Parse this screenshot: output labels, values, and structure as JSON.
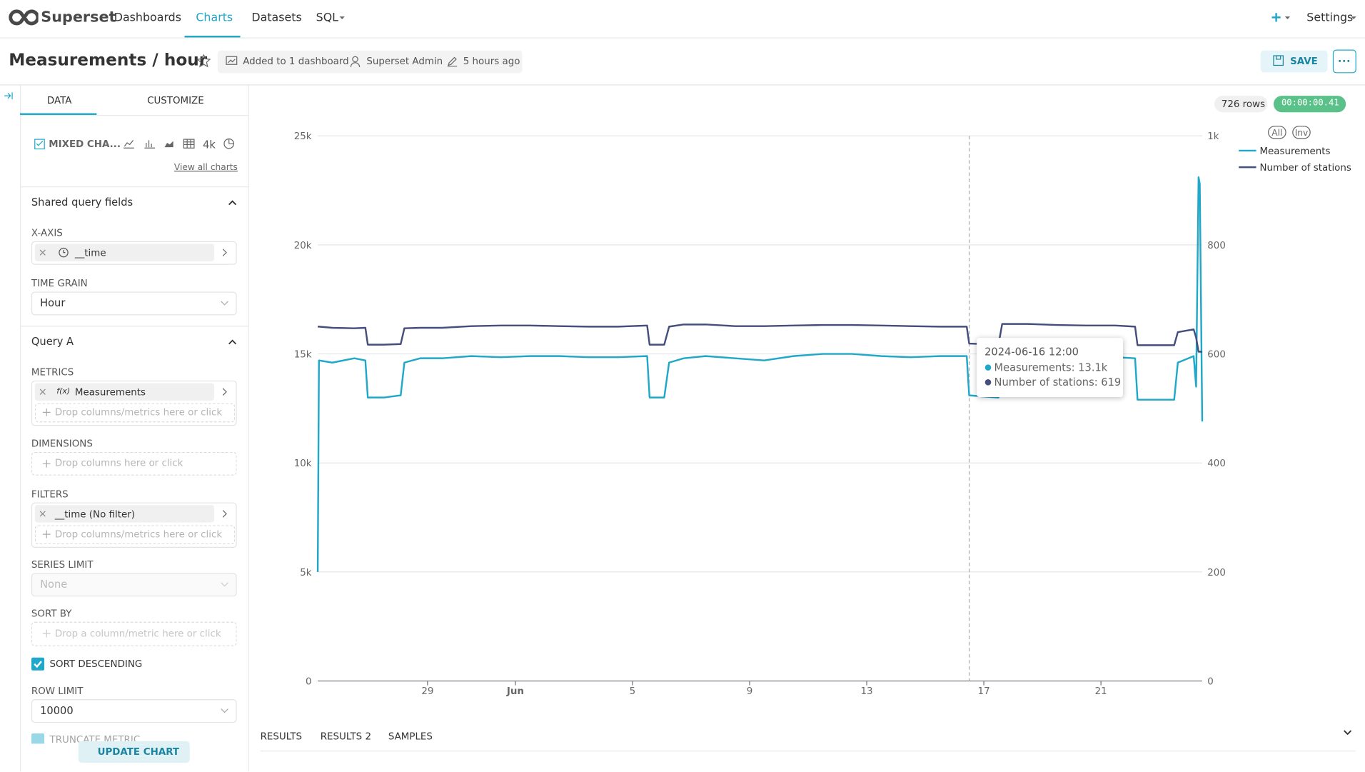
{
  "nav": {
    "brand": "Superset",
    "links": [
      "Dashboards",
      "Charts",
      "Datasets",
      "SQL"
    ],
    "settings": "Settings"
  },
  "header": {
    "title": "Measurements / hour",
    "dashboards": "Added to 1 dashboard",
    "owner": "Superset Admin",
    "modified": "5 hours ago",
    "save": "SAVE"
  },
  "panel": {
    "tabs": [
      "DATA",
      "CUSTOMIZE"
    ],
    "viz_type": "MIXED CHA...",
    "viz_icon": "4k",
    "view_all": "View all charts",
    "shared_section": "Shared query fields",
    "x_axis": {
      "label": "X-AXIS",
      "value": "__time"
    },
    "time_grain": {
      "label": "TIME GRAIN",
      "value": "Hour"
    },
    "query_section": "Query A",
    "metrics": {
      "label": "METRICS",
      "icon": "f(x)",
      "value": "Measurements",
      "drop": "Drop columns/metrics here or click"
    },
    "dimensions": {
      "label": "DIMENSIONS",
      "drop": "Drop columns here or click"
    },
    "filters": {
      "label": "FILTERS",
      "value": "__time (No filter)",
      "drop": "Drop columns/metrics here or click"
    },
    "series_limit": {
      "label": "SERIES LIMIT",
      "placeholder": "None"
    },
    "sort_by": {
      "label": "SORT BY",
      "drop": "Drop a column/metric here or click"
    },
    "sort_descending": "SORT DESCENDING",
    "row_limit": {
      "label": "ROW LIMIT",
      "value": "10000"
    },
    "truncate": "TRUNCATE METRIC",
    "update": "UPDATE CHART"
  },
  "results": {
    "rows": "726 rows",
    "duration": "00:00:00.41",
    "tabs": [
      "RESULTS",
      "RESULTS 2",
      "SAMPLES"
    ]
  },
  "chart_data": {
    "type": "line",
    "x": [
      "2024-05-25 06:00",
      "2024-05-25 07:00",
      "2024-05-25 18:00",
      "2024-05-26 12:00",
      "2024-05-26 21:00",
      "2024-05-26 23:00",
      "2024-05-27 12:00",
      "2024-05-28 02:00",
      "2024-05-28 05:00",
      "2024-05-28 18:00",
      "2024-05-29 12:00",
      "2024-05-30 12:00",
      "2024-05-31 12:00",
      "2024-06-01 12:00",
      "2024-06-02 12:00",
      "2024-06-03 12:00",
      "2024-06-04 12:00",
      "2024-06-05 12:00",
      "2024-06-05 14:00",
      "2024-06-06 02:00",
      "2024-06-06 06:00",
      "2024-06-06 18:00",
      "2024-06-07 12:00",
      "2024-06-08 12:00",
      "2024-06-09 12:00",
      "2024-06-10 12:00",
      "2024-06-11 12:00",
      "2024-06-12 12:00",
      "2024-06-13 12:00",
      "2024-06-14 12:00",
      "2024-06-15 12:00",
      "2024-06-16 10:00",
      "2024-06-16 12:00",
      "2024-06-17 12:00",
      "2024-06-17 15:00",
      "2024-06-18 12:00",
      "2024-06-19 12:00",
      "2024-06-20 12:00",
      "2024-06-21 12:00",
      "2024-06-22 04:00",
      "2024-06-22 06:00",
      "2024-06-23 12:00",
      "2024-06-23 15:00",
      "2024-06-24 04:00",
      "2024-06-24 06:00",
      "2024-06-24 08:00",
      "2024-06-24 09:00",
      "2024-06-24 11:00"
    ],
    "series": [
      {
        "name": "Measurements",
        "color": "#1fa8c9",
        "values": [
          5000,
          14700,
          14600,
          14800,
          14700,
          13000,
          13000,
          13100,
          14600,
          14800,
          14800,
          14900,
          14850,
          14900,
          14900,
          14850,
          14850,
          14900,
          13000,
          13000,
          14600,
          14800,
          14900,
          14800,
          14700,
          14900,
          15000,
          15000,
          14900,
          14850,
          14900,
          14900,
          13100,
          13000,
          14800,
          14900,
          14850,
          14800,
          14850,
          14800,
          12900,
          12900,
          14600,
          14900,
          13500,
          23100,
          22800,
          11900
        ]
      },
      {
        "name": "Number of stations",
        "color": "#454e7c",
        "axis": "y2",
        "values": [
          650,
          650,
          648,
          647,
          648,
          617,
          617,
          618,
          647,
          648,
          648,
          651,
          652,
          652,
          651,
          650,
          650,
          652,
          617,
          617,
          650,
          654,
          654,
          651,
          651,
          652,
          653,
          653,
          652,
          651,
          650,
          650,
          619,
          617,
          655,
          655,
          653,
          652,
          652,
          650,
          616,
          616,
          640,
          645,
          630,
          604,
          604,
          604
        ]
      }
    ],
    "xlim": [
      "2024-05-25 06:00",
      "2024-06-24 11:00"
    ],
    "xticks": [
      {
        "value": "2024-05-29 00:00",
        "label": "29"
      },
      {
        "value": "2024-06-01 00:00",
        "label": "Jun"
      },
      {
        "value": "2024-06-05 00:00",
        "label": "5"
      },
      {
        "value": "2024-06-09 00:00",
        "label": "9"
      },
      {
        "value": "2024-06-13 00:00",
        "label": "13"
      },
      {
        "value": "2024-06-17 00:00",
        "label": "17"
      },
      {
        "value": "2024-06-21 00:00",
        "label": "21"
      }
    ],
    "ylim": [
      0,
      25000
    ],
    "yticks": [
      0,
      {
        "value": 5000,
        "label": "5k"
      },
      {
        "value": 10000,
        "label": "10k"
      },
      {
        "value": 15000,
        "label": "15k"
      },
      {
        "value": 20000,
        "label": "20k"
      },
      {
        "value": 25000,
        "label": "25k"
      }
    ],
    "y2lim": [
      0,
      1000
    ],
    "y2ticks": [
      0,
      200,
      400,
      600,
      800,
      {
        "value": 1000,
        "label": "1k"
      }
    ],
    "grid": true,
    "legend": "top-right",
    "legend_buttons": [
      "All",
      "Inv"
    ],
    "tooltip": {
      "title": "2024-06-16 12:00",
      "lines": [
        "Measurements: 13.1k",
        "Number of stations: 619"
      ]
    }
  }
}
